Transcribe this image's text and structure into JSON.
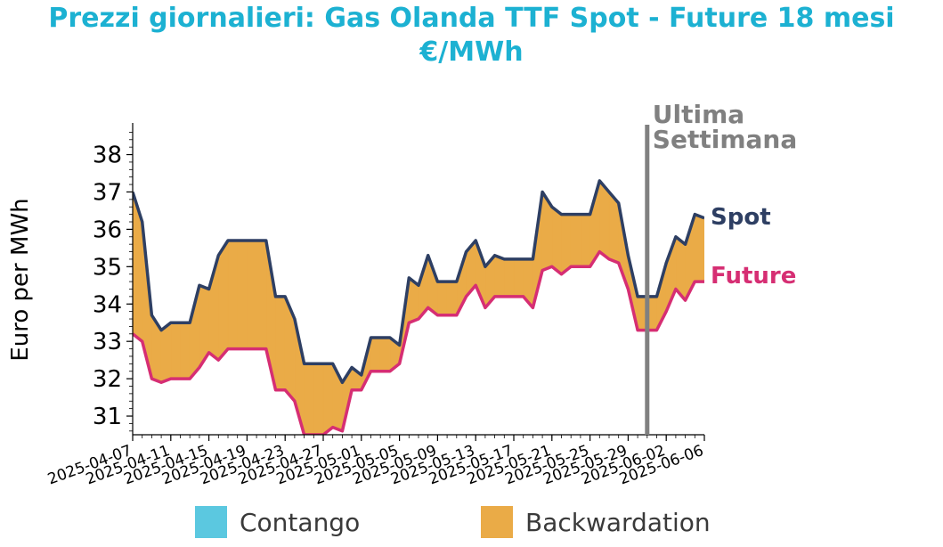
{
  "title_line1": "Prezzi giornalieri: Gas Olanda TTF Spot - Future 18 mesi",
  "title_line2": "€/MWh",
  "colors": {
    "title": "#1cb1d2",
    "spot": "#2e3f63",
    "future": "#d62e73",
    "contango": "#5bc8e0",
    "backwardation": "#eaab47",
    "marker": "#808080"
  },
  "legend": [
    {
      "label": "Contango",
      "color": "#5bc8e0"
    },
    {
      "label": "Backwardation",
      "color": "#eaab47"
    }
  ],
  "chart_data": {
    "type": "area",
    "title": "Prezzi giornalieri: Gas Olanda TTF Spot - Future 18 mesi €/MWh",
    "ylabel": "Euro per MWh",
    "xlabel": "",
    "ylim": [
      30.5,
      38.8
    ],
    "yticks": [
      31,
      32,
      33,
      34,
      35,
      36,
      37,
      38
    ],
    "xticks": [
      "2025-04-07",
      "2025-04-11",
      "2025-04-15",
      "2025-04-19",
      "2025-04-23",
      "2025-04-27",
      "2025-05-01",
      "2025-05-05",
      "2025-05-09",
      "2025-05-13",
      "2025-05-17",
      "2025-05-21",
      "2025-05-25",
      "2025-05-29",
      "2025-06-02",
      "2025-06-06"
    ],
    "x_start": "2025-04-07",
    "x_end": "2025-06-06",
    "grid": false,
    "fill_between": {
      "above": "Backwardation",
      "below": "Contango"
    },
    "annotation": {
      "date": "2025-05-31",
      "text": "Ultima Settimana"
    },
    "series": [
      {
        "name": "Spot",
        "x": [
          "2025-04-07",
          "2025-04-08",
          "2025-04-09",
          "2025-04-10",
          "2025-04-11",
          "2025-04-12",
          "2025-04-13",
          "2025-04-14",
          "2025-04-15",
          "2025-04-16",
          "2025-04-17",
          "2025-04-18",
          "2025-04-19",
          "2025-04-20",
          "2025-04-21",
          "2025-04-22",
          "2025-04-23",
          "2025-04-24",
          "2025-04-25",
          "2025-04-26",
          "2025-04-27",
          "2025-04-28",
          "2025-04-29",
          "2025-04-30",
          "2025-05-01",
          "2025-05-02",
          "2025-05-03",
          "2025-05-04",
          "2025-05-05",
          "2025-05-06",
          "2025-05-07",
          "2025-05-08",
          "2025-05-09",
          "2025-05-10",
          "2025-05-11",
          "2025-05-12",
          "2025-05-13",
          "2025-05-14",
          "2025-05-15",
          "2025-05-16",
          "2025-05-17",
          "2025-05-18",
          "2025-05-19",
          "2025-05-20",
          "2025-05-21",
          "2025-05-22",
          "2025-05-23",
          "2025-05-24",
          "2025-05-25",
          "2025-05-26",
          "2025-05-27",
          "2025-05-28",
          "2025-05-29",
          "2025-05-30",
          "2025-05-31",
          "2025-06-01",
          "2025-06-02",
          "2025-06-03",
          "2025-06-04",
          "2025-06-05",
          "2025-06-06"
        ],
        "values": [
          37.0,
          36.2,
          33.7,
          33.3,
          33.5,
          33.5,
          33.5,
          34.5,
          34.4,
          35.3,
          35.7,
          35.7,
          35.7,
          35.7,
          35.7,
          34.2,
          34.2,
          33.6,
          32.4,
          32.4,
          32.4,
          32.4,
          31.9,
          32.3,
          32.1,
          33.1,
          33.1,
          33.1,
          32.9,
          34.7,
          34.5,
          35.3,
          34.6,
          34.6,
          34.6,
          35.4,
          35.7,
          35.0,
          35.3,
          35.2,
          35.2,
          35.2,
          35.2,
          37.0,
          36.6,
          36.4,
          36.4,
          36.4,
          36.4,
          37.3,
          37.0,
          36.7,
          35.3,
          34.2,
          34.2,
          34.2,
          35.1,
          35.8,
          35.6,
          36.4,
          36.3
        ]
      },
      {
        "name": "Future",
        "x": [
          "2025-04-07",
          "2025-04-08",
          "2025-04-09",
          "2025-04-10",
          "2025-04-11",
          "2025-04-12",
          "2025-04-13",
          "2025-04-14",
          "2025-04-15",
          "2025-04-16",
          "2025-04-17",
          "2025-04-18",
          "2025-04-19",
          "2025-04-20",
          "2025-04-21",
          "2025-04-22",
          "2025-04-23",
          "2025-04-24",
          "2025-04-25",
          "2025-04-26",
          "2025-04-27",
          "2025-04-28",
          "2025-04-29",
          "2025-04-30",
          "2025-05-01",
          "2025-05-02",
          "2025-05-03",
          "2025-05-04",
          "2025-05-05",
          "2025-05-06",
          "2025-05-07",
          "2025-05-08",
          "2025-05-09",
          "2025-05-10",
          "2025-05-11",
          "2025-05-12",
          "2025-05-13",
          "2025-05-14",
          "2025-05-15",
          "2025-05-16",
          "2025-05-17",
          "2025-05-18",
          "2025-05-19",
          "2025-05-20",
          "2025-05-21",
          "2025-05-22",
          "2025-05-23",
          "2025-05-24",
          "2025-05-25",
          "2025-05-26",
          "2025-05-27",
          "2025-05-28",
          "2025-05-29",
          "2025-05-30",
          "2025-05-31",
          "2025-06-01",
          "2025-06-02",
          "2025-06-03",
          "2025-06-04",
          "2025-06-05",
          "2025-06-06"
        ],
        "values": [
          33.2,
          33.0,
          32.0,
          31.9,
          32.0,
          32.0,
          32.0,
          32.3,
          32.7,
          32.5,
          32.8,
          32.8,
          32.8,
          32.8,
          32.8,
          31.7,
          31.7,
          31.4,
          30.5,
          30.5,
          30.5,
          30.7,
          30.6,
          31.7,
          31.7,
          32.2,
          32.2,
          32.2,
          32.4,
          33.5,
          33.6,
          33.9,
          33.7,
          33.7,
          33.7,
          34.2,
          34.5,
          33.9,
          34.2,
          34.2,
          34.2,
          34.2,
          33.9,
          34.9,
          35.0,
          34.8,
          35.0,
          35.0,
          35.0,
          35.4,
          35.2,
          35.1,
          34.4,
          33.3,
          33.3,
          33.3,
          33.8,
          34.4,
          34.1,
          34.6,
          34.6
        ]
      }
    ]
  }
}
